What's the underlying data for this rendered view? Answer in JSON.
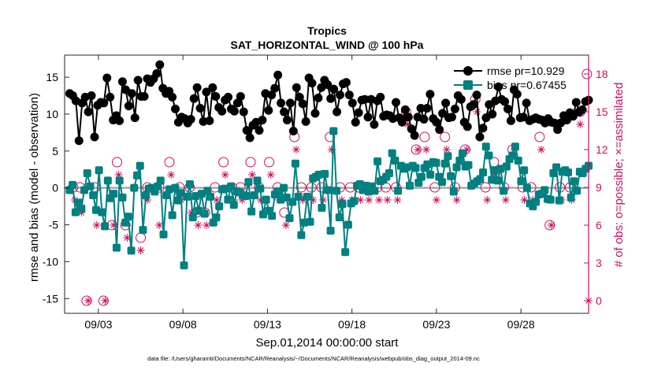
{
  "chart_data": {
    "type": "line",
    "title": "Tropics",
    "subtitle": "SAT_HORIZONTAL_WIND @ 100 hPa",
    "xlabel": "Sep.01,2014 00:00:00 start",
    "ylabel": "rmse and bias (model - observation)",
    "ylabel_right": "# of obs: o=possible; ×=assimilated",
    "footnote": "data file: /Users/gharamti/Documents/NCAR/Reanalysis/~/Documents/NCAR/Reanalysis/webpub/obs_diag_output_2014-09.nc",
    "xlim": [
      1,
      32
    ],
    "ylim": [
      -17,
      18
    ],
    "ylim_right": [
      -1.0,
      19.5
    ],
    "x_ticks": [
      3,
      8,
      13,
      18,
      23,
      28
    ],
    "x_tick_labels": [
      "09/03",
      "09/08",
      "09/13",
      "09/18",
      "09/23",
      "09/28"
    ],
    "y_ticks": [
      -15,
      -10,
      -5,
      0,
      5,
      10,
      15
    ],
    "y_tick_labels": [
      "-15",
      "-10",
      "-5",
      "0",
      "5",
      "10",
      "15"
    ],
    "y_ticks_right": [
      0,
      3,
      6,
      9,
      12,
      15,
      18
    ],
    "y_tick_labels_right": [
      "0",
      "3",
      "6",
      "9",
      "12",
      "15",
      "18"
    ],
    "colors": {
      "rmse": "#000000",
      "bias": "#008080",
      "obs": "#c8105c",
      "zero_line": "#aaaaaa"
    },
    "series": [
      {
        "name": "rmse pr=10.929",
        "color": "#000000",
        "marker": "circle",
        "values": [
          12.8,
          12.5,
          11.8,
          6.4,
          11.5,
          12.3,
          10.3,
          12.5,
          6.9,
          11.2,
          11.6,
          11.5,
          14.9,
          12.3,
          9.2,
          9.8,
          9.1,
          14.4,
          13.3,
          11.1,
          12.8,
          9.5,
          14.6,
          12.4,
          12.4,
          14.8,
          14.3,
          14.8,
          15.5,
          16.7,
          13.5,
          12.8,
          13.1,
          12.3,
          10.7,
          8.9,
          9.6,
          9.4,
          8.8,
          9.3,
          12.1,
          13.6,
          10.8,
          9.0,
          13.0,
          9.1,
          13.6,
          12.4,
          10.9,
          10.4,
          11.9,
          12.3,
          10.7,
          10.4,
          11.5,
          12.4,
          10.3,
          7.8,
          6.8,
          8.5,
          8.9,
          7.8,
          9.2,
          12.8,
          10.5,
          12.6,
          13.5,
          15.3,
          11.5,
          10.3,
          9.2,
          11.5,
          7.7,
          13.6,
          12.3,
          11.4,
          9.0,
          14.9,
          14.2,
          10.1,
          12.2,
          13.6,
          14.6,
          14.0,
          12.1,
          13.4,
          10.3,
          12.6,
          14.1,
          14.3,
          12.6,
          11.5,
          8.9,
          10.2,
          11.9,
          12.0,
          9.6,
          12.0,
          8.6,
          11.8,
          12.3,
          9.7,
          9.9,
          9.8,
          9.4,
          11.6,
          9.5,
          8.9,
          10.6,
          9.6,
          8.0,
          7.1,
          9.6,
          10.8,
          9.3,
          10.8,
          12.7,
          9.4,
          8.9,
          7.9,
          10.1,
          11.5,
          9.5,
          9.6,
          10.7,
          12.5,
          12.0,
          8.9,
          8.3,
          11.0,
          11.3,
          12.6,
          6.9,
          8.1,
          9.5,
          11.3,
          10.0,
          11.8,
          13.7,
          12.0,
          11.7,
          10.7,
          9.1,
          13.3,
          12.7,
          9.5,
          9.6,
          11.5,
          9.1,
          9.3,
          9.5,
          9.3,
          9.2,
          8.8,
          9.4,
          8.9,
          8.8,
          7.9,
          8.8,
          9.8,
          9.2,
          10.2,
          9.7,
          11.6,
          10.3,
          10.6,
          11.7,
          11.9
        ]
      },
      {
        "name": "bias pr=0.67455",
        "color": "#008080",
        "marker": "square",
        "values": [
          -0.3,
          0.4,
          -3.3,
          -2.0,
          -2.8,
          -0.3,
          2.0,
          0.2,
          -1.0,
          -3.0,
          2.4,
          -3.3,
          -5.2,
          1.0,
          -1.4,
          -0.8,
          -8.1,
          1.0,
          -1.3,
          -4.7,
          -3.9,
          -8.5,
          0.0,
          1.7,
          3.0,
          -5.7,
          -1.0,
          -0.1,
          0.0,
          -0.5,
          0.2,
          1.0,
          -6.3,
          -1.0,
          -0.2,
          -3.7,
          0.0,
          -1.7,
          -0.7,
          -10.5,
          -1.2,
          0.5,
          -4.0,
          -1.1,
          -3.1,
          -0.8,
          -3.5,
          -0.4,
          -1.2,
          -4.7,
          -4.0,
          -2.5,
          -0.2,
          -0.1,
          -1.6,
          0.2,
          -2.3,
          -0.5,
          -0.6,
          -1.0,
          -1.1,
          0.8,
          -3.2,
          -1.0,
          1.0,
          -0.1,
          -3.6,
          -1.6,
          -3.1,
          -3.8,
          -0.9,
          -0.5,
          -1.6,
          0.0,
          -1.3,
          -4.1,
          -1.9,
          3.3,
          -1.2,
          -6.4,
          -4.7,
          -1.2,
          -4.6,
          1.3,
          1.5,
          1.8,
          -2.7,
          1.9,
          -0.3,
          -5.8,
          7.7,
          -0.4,
          -4.0,
          -2.2,
          -8.7,
          -5.0,
          -2.1,
          -1.8,
          0.3,
          0.5,
          -0.3,
          0.3,
          -0.5,
          0.2,
          -0.4,
          3.6,
          0.9,
          1.1,
          1.5,
          2.0,
          4.7,
          3.7,
          -0.4,
          3.0,
          2.6,
          2.8,
          0.3,
          3.0,
          2.7,
          0.7,
          1.5,
          2.7,
          3.2,
          1.8,
          3.5,
          3.4,
          1.5,
          0.8,
          3.3,
          4.3,
          1.6,
          -0.5,
          2.8,
          3.7,
          4.7,
          2.9,
          3.1,
          0.3,
          0.6,
          0.9,
          1.2,
          2.1,
          5.6,
          4.4,
          1.1,
          2.4,
          1.0,
          2.6,
          -0.4,
          2.9,
          3.9,
          4.4,
          5.6,
          3.7,
          0.9,
          2.4,
          0.0,
          -2.1,
          -2.5,
          -1.9,
          -0.9,
          -0.8,
          -0.3,
          -1.5,
          -1.6,
          2.0,
          2.8,
          -1.7,
          2.2,
          2.4,
          2.1,
          -1.3,
          0.9,
          -0.4,
          2.2,
          2.0,
          2.6,
          3.0
        ]
      }
    ],
    "obs_possible": {
      "name": "o=possible",
      "axis": "right",
      "x": [
        1.5,
        1.9,
        2.3,
        2.8,
        3.3,
        3.8,
        4.1,
        4.6,
        5.5,
        5.9,
        6.6,
        7.2,
        7.8,
        8.4,
        8.8,
        9.3,
        9.9,
        10.4,
        10.9,
        11.4,
        12.0,
        12.5,
        13.1,
        13.6,
        14.0,
        14.6,
        15.0,
        15.6,
        16.2,
        16.7,
        17.3,
        17.9,
        18.4,
        18.9,
        19.5,
        20.0,
        20.6,
        21.2,
        21.8,
        22.3,
        22.9,
        23.5,
        24.1,
        24.7,
        25.3,
        25.9,
        26.4,
        27.0,
        27.5,
        28.1,
        28.6,
        29.1,
        29.7,
        30.3,
        30.9,
        31.5,
        31.9
      ],
      "values": [
        9,
        9,
        0,
        9,
        0,
        6,
        11,
        6,
        5,
        9,
        9,
        11,
        9,
        9,
        7,
        7,
        9,
        11,
        9,
        9,
        11,
        9,
        11,
        9,
        7,
        13,
        9,
        9,
        9,
        13,
        9,
        9,
        9,
        9,
        9,
        9,
        9,
        15,
        12,
        13,
        9,
        13,
        9,
        12,
        16,
        9,
        11,
        9,
        12,
        9,
        9,
        13,
        6,
        9,
        9,
        15,
        18
      ]
    },
    "obs_assimilated": {
      "name": "×=assimilated",
      "axis": "right",
      "x": [
        1.6,
        2.0,
        2.4,
        2.9,
        3.4,
        3.9,
        4.2,
        4.7,
        5.5,
        5.9,
        6.6,
        7.3,
        7.9,
        8.5,
        8.9,
        9.4,
        10.0,
        10.5,
        11.0,
        11.5,
        12.1,
        12.6,
        13.2,
        13.7,
        14.1,
        14.7,
        15.1,
        15.7,
        16.3,
        16.8,
        17.4,
        18.0,
        18.5,
        19.0,
        19.6,
        20.1,
        20.7,
        21.3,
        21.9,
        22.4,
        23.0,
        23.6,
        24.2,
        24.8,
        25.4,
        26.0,
        26.5,
        27.1,
        27.6,
        28.2,
        28.7,
        29.2,
        29.8,
        30.4,
        31.0,
        31.5,
        32.0
      ],
      "values": [
        8,
        7,
        0,
        6,
        0,
        6,
        10,
        5,
        4,
        8,
        6,
        10,
        8,
        7,
        6,
        6,
        8,
        10,
        8,
        8,
        10,
        8,
        10,
        8,
        6,
        12,
        8,
        8,
        8,
        12,
        8,
        8,
        8,
        8,
        8,
        8,
        8,
        14,
        12,
        12,
        8,
        12,
        8,
        12,
        15,
        8,
        10,
        8,
        12,
        8,
        8,
        12,
        6,
        8,
        8,
        14,
        0
      ]
    },
    "legend": {
      "position": "top-right",
      "entries": [
        "rmse pr=10.929",
        "bias pr=0.67455"
      ]
    }
  }
}
